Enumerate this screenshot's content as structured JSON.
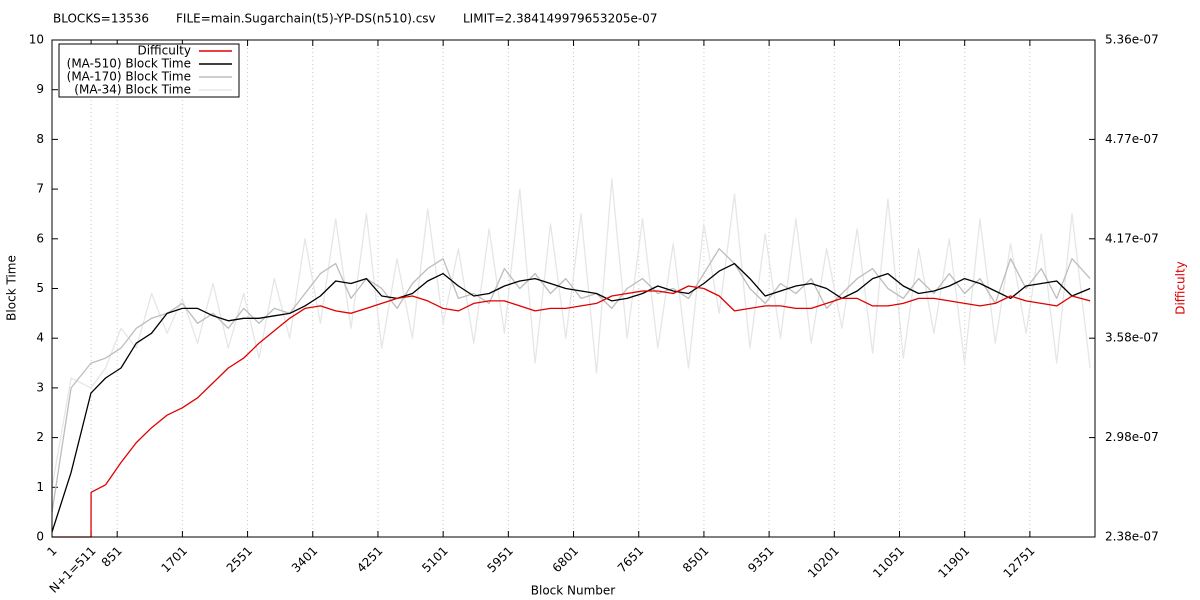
{
  "chart_data": {
    "type": "line",
    "annotations": [
      "BLOCKS=13536",
      "FILE=main.Sugarchain(t5)-YP-DS(n510).csv",
      "LIMIT=2.384149979653205e-07"
    ],
    "xlabel": "Block Number",
    "ylabel": "Block Time",
    "y2label": "Difficulty",
    "y2label_color": "#e00000",
    "xgrid": true,
    "legend": "upper left",
    "xlim": [
      1,
      13600
    ],
    "ylim": [
      0,
      10
    ],
    "y2lim": [
      2.3841e-07,
      5.3643e-07
    ],
    "xticks": [
      1,
      {
        "value": 511,
        "label": "N+1=511"
      },
      851,
      1701,
      2551,
      3401,
      4251,
      5101,
      5951,
      6801,
      7651,
      8501,
      9351,
      10201,
      11051,
      11901,
      12751
    ],
    "yticks": [
      0,
      1,
      2,
      3,
      4,
      5,
      6,
      7,
      8,
      9,
      10
    ],
    "y2ticks": [
      {
        "value": 2.3841e-07,
        "label": "2.38e-07"
      },
      {
        "value": 2.9802e-07,
        "label": "2.98e-07"
      },
      {
        "value": 3.5762e-07,
        "label": "3.58e-07"
      },
      {
        "value": 4.1722e-07,
        "label": "4.17e-07"
      },
      {
        "value": 4.7683e-07,
        "label": "4.77e-07"
      },
      {
        "value": 5.3643e-07,
        "label": "5.36e-07"
      }
    ],
    "x": [
      1,
      250,
      510,
      511,
      700,
      900,
      1100,
      1300,
      1500,
      1700,
      1900,
      2100,
      2300,
      2500,
      2700,
      2900,
      3100,
      3300,
      3500,
      3700,
      3900,
      4100,
      4300,
      4500,
      4700,
      4900,
      5100,
      5300,
      5500,
      5700,
      5900,
      6100,
      6300,
      6500,
      6700,
      6900,
      7100,
      7300,
      7500,
      7700,
      7900,
      8100,
      8300,
      8500,
      8700,
      8900,
      9100,
      9300,
      9500,
      9700,
      9900,
      10100,
      10300,
      10500,
      10700,
      10900,
      11100,
      11300,
      11500,
      11700,
      11900,
      12100,
      12300,
      12500,
      12700,
      12900,
      13100,
      13300,
      13536
    ],
    "series": [
      {
        "name": "Difficulty",
        "color": "#e00000",
        "axis": "y2",
        "values": [
          2.3841e-07,
          2.3841e-07,
          2.3841e-07,
          2.6523e-07,
          2.697e-07,
          2.8311e-07,
          2.9503e-07,
          3.0397e-07,
          3.1142e-07,
          3.159e-07,
          3.2186e-07,
          3.308e-07,
          3.3974e-07,
          3.457e-07,
          3.5464e-07,
          3.6209e-07,
          3.6954e-07,
          3.755e-07,
          3.7699e-07,
          3.7401e-07,
          3.7252e-07,
          3.755e-07,
          3.7848e-07,
          3.8146e-07,
          3.8295e-07,
          3.7997e-07,
          3.755e-07,
          3.7401e-07,
          3.7848e-07,
          3.7997e-07,
          3.7997e-07,
          3.7699e-07,
          3.7401e-07,
          3.755e-07,
          3.755e-07,
          3.7699e-07,
          3.7848e-07,
          3.8295e-07,
          3.8444e-07,
          3.8593e-07,
          3.8593e-07,
          3.8444e-07,
          3.8891e-07,
          3.8742e-07,
          3.8295e-07,
          3.7401e-07,
          3.755e-07,
          3.7699e-07,
          3.7699e-07,
          3.755e-07,
          3.755e-07,
          3.7848e-07,
          3.8146e-07,
          3.8146e-07,
          3.7699e-07,
          3.7699e-07,
          3.7848e-07,
          3.8146e-07,
          3.8146e-07,
          3.7997e-07,
          3.7848e-07,
          3.7699e-07,
          3.7848e-07,
          3.8295e-07,
          3.7997e-07,
          3.7848e-07,
          3.7699e-07,
          3.8295e-07,
          3.7997e-07
        ]
      },
      {
        "name": "(MA-510) Block Time",
        "color": "#000000",
        "values": [
          0.1,
          1.3,
          2.9,
          2.9,
          3.2,
          3.4,
          3.9,
          4.1,
          4.5,
          4.6,
          4.6,
          4.45,
          4.35,
          4.4,
          4.4,
          4.45,
          4.5,
          4.65,
          4.85,
          5.15,
          5.1,
          5.2,
          4.85,
          4.8,
          4.9,
          5.15,
          5.3,
          5.05,
          4.85,
          4.9,
          5.05,
          5.15,
          5.2,
          5.1,
          5.0,
          4.95,
          4.9,
          4.75,
          4.8,
          4.9,
          5.05,
          4.95,
          4.9,
          5.1,
          5.35,
          5.5,
          5.2,
          4.85,
          4.95,
          5.05,
          5.1,
          5.0,
          4.8,
          4.95,
          5.2,
          5.3,
          5.05,
          4.9,
          4.95,
          5.05,
          5.2,
          5.1,
          4.95,
          4.8,
          5.05,
          5.1,
          5.15,
          4.85,
          5.0
        ]
      },
      {
        "name": "(MA-170) Block Time",
        "color": "#bdbdbd",
        "values": [
          0.5,
          3.0,
          3.5,
          3.5,
          3.6,
          3.8,
          4.2,
          4.4,
          4.5,
          4.7,
          4.3,
          4.5,
          4.2,
          4.6,
          4.3,
          4.6,
          4.5,
          4.9,
          5.3,
          5.5,
          4.8,
          5.2,
          5.0,
          4.6,
          5.1,
          5.4,
          5.6,
          4.8,
          4.9,
          4.7,
          5.4,
          5.0,
          5.3,
          4.9,
          5.2,
          4.8,
          4.9,
          4.6,
          5.0,
          5.2,
          4.9,
          5.0,
          4.8,
          5.3,
          5.8,
          5.5,
          5.0,
          4.7,
          5.1,
          4.9,
          5.2,
          4.6,
          4.9,
          5.2,
          5.4,
          5.0,
          4.8,
          5.2,
          4.9,
          5.3,
          4.9,
          5.2,
          4.7,
          5.6,
          5.0,
          5.4,
          4.8,
          5.6,
          5.2
        ]
      },
      {
        "name": "(MA-34) Block Time",
        "color": "#e6e6e6",
        "values": [
          1.0,
          3.2,
          3.0,
          3.0,
          3.4,
          4.2,
          3.8,
          4.9,
          4.1,
          4.8,
          3.9,
          5.1,
          3.8,
          4.9,
          3.6,
          5.2,
          4.0,
          6.0,
          4.3,
          6.4,
          4.2,
          6.5,
          3.8,
          5.6,
          4.0,
          6.6,
          4.3,
          5.8,
          3.9,
          6.2,
          4.1,
          7.0,
          3.5,
          6.3,
          4.0,
          6.5,
          3.3,
          7.2,
          4.0,
          6.4,
          3.8,
          5.9,
          3.4,
          6.3,
          4.5,
          6.9,
          3.8,
          6.1,
          4.0,
          6.4,
          3.9,
          5.8,
          4.2,
          6.2,
          3.7,
          6.8,
          3.6,
          5.8,
          4.1,
          6.0,
          3.5,
          6.4,
          3.9,
          5.9,
          4.1,
          6.1,
          3.5,
          6.5,
          3.4
        ]
      }
    ]
  }
}
